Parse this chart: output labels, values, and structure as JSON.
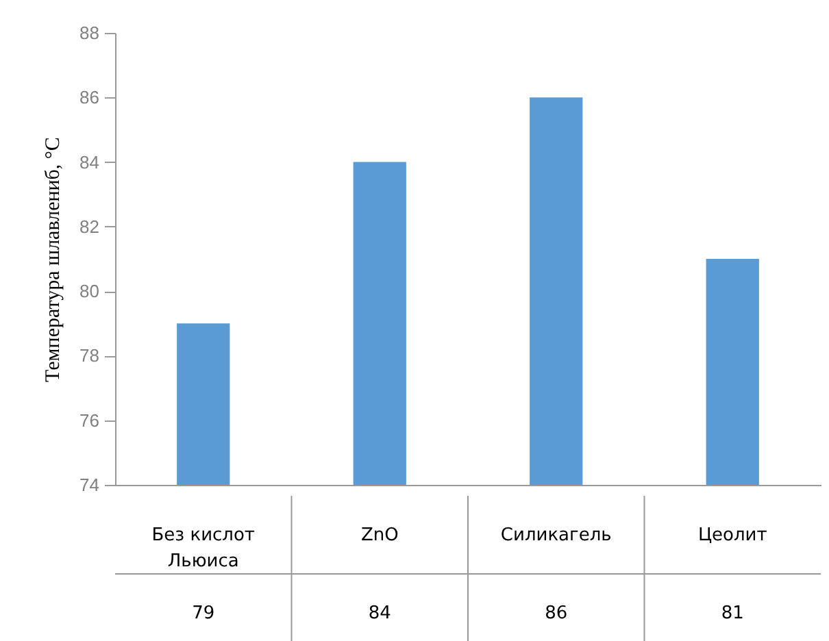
{
  "chart_data": {
    "type": "bar",
    "ylabel": "Температура шлавлениб, °C",
    "categories": [
      "Без кислот Льюиса",
      "ZnO",
      "Силикагель",
      "Цеолит"
    ],
    "values": [
      79,
      84,
      86,
      81
    ],
    "color": "#5b9bd5",
    "ylim": [
      74,
      88
    ],
    "yticks": [
      74,
      76,
      78,
      80,
      82,
      84,
      86,
      88
    ],
    "data_labels": true
  }
}
